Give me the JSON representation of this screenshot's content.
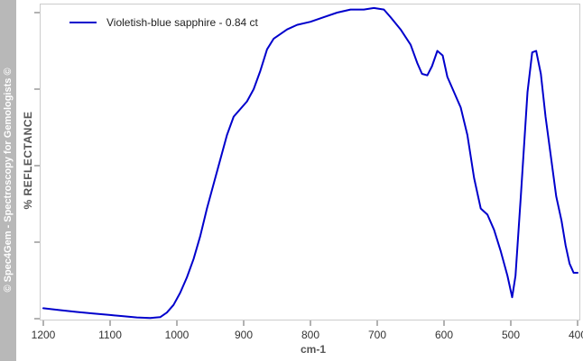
{
  "watermark": "© Spec4Gem - Spectroscopy for Gemologists ©",
  "chart_data": {
    "type": "line",
    "title": "",
    "xlabel": "cm-1",
    "ylabel": "% REFLECTANCE",
    "xlim": [
      1200,
      400
    ],
    "x_reversed": true,
    "ylim": [
      0,
      100
    ],
    "y_tick_labels_shown": false,
    "x_ticks": [
      1200,
      1100,
      1000,
      900,
      800,
      700,
      600,
      500,
      400
    ],
    "x_tick_labels": [
      "1200",
      "1100",
      "1000",
      "900",
      "800",
      "700",
      "600",
      "500",
      "400"
    ],
    "grid": false,
    "legend_position": "top-left",
    "series": [
      {
        "name": "Violetish-blue sapphire - 0.84 ct",
        "color": "#0000cc",
        "points": [
          [
            1200,
            3.4
          ],
          [
            1175,
            2.8
          ],
          [
            1150,
            2.2
          ],
          [
            1125,
            1.7
          ],
          [
            1100,
            1.2
          ],
          [
            1080,
            0.8
          ],
          [
            1060,
            0.4
          ],
          [
            1040,
            0.2
          ],
          [
            1025,
            0.5
          ],
          [
            1015,
            2.0
          ],
          [
            1005,
            4.5
          ],
          [
            995,
            8.5
          ],
          [
            985,
            13.5
          ],
          [
            975,
            19.5
          ],
          [
            965,
            27
          ],
          [
            955,
            36
          ],
          [
            945,
            44
          ],
          [
            935,
            52
          ],
          [
            925,
            60
          ],
          [
            915,
            66
          ],
          [
            905,
            68.5
          ],
          [
            895,
            71
          ],
          [
            885,
            75
          ],
          [
            875,
            81
          ],
          [
            865,
            88
          ],
          [
            855,
            91.5
          ],
          [
            845,
            93
          ],
          [
            835,
            94.5
          ],
          [
            820,
            96
          ],
          [
            800,
            97
          ],
          [
            780,
            98.5
          ],
          [
            760,
            100
          ],
          [
            740,
            101
          ],
          [
            720,
            101
          ],
          [
            705,
            101.5
          ],
          [
            690,
            101
          ],
          [
            680,
            98.5
          ],
          [
            665,
            94.5
          ],
          [
            650,
            89.5
          ],
          [
            640,
            83.5
          ],
          [
            633,
            80
          ],
          [
            625,
            79.5
          ],
          [
            618,
            82.5
          ],
          [
            610,
            87.5
          ],
          [
            602,
            86
          ],
          [
            595,
            79
          ],
          [
            585,
            74
          ],
          [
            575,
            69
          ],
          [
            565,
            60
          ],
          [
            555,
            46
          ],
          [
            545,
            36
          ],
          [
            535,
            34
          ],
          [
            525,
            29
          ],
          [
            515,
            22
          ],
          [
            505,
            14
          ],
          [
            498,
            7
          ],
          [
            493,
            14
          ],
          [
            485,
            40
          ],
          [
            475,
            74
          ],
          [
            468,
            87
          ],
          [
            462,
            87.5
          ],
          [
            455,
            80
          ],
          [
            448,
            66
          ],
          [
            440,
            53
          ],
          [
            432,
            40
          ],
          [
            424,
            32
          ],
          [
            418,
            24
          ],
          [
            412,
            18
          ],
          [
            406,
            15
          ],
          [
            400,
            15
          ]
        ]
      }
    ]
  }
}
